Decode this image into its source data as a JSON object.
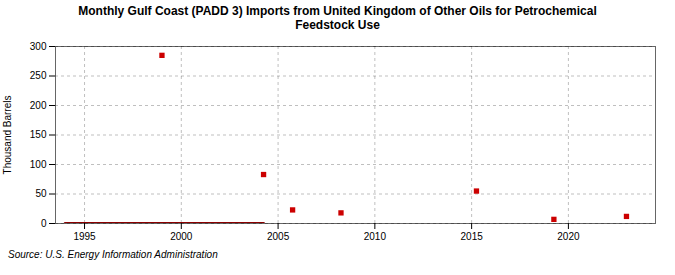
{
  "chart_data": {
    "type": "scatter",
    "title": "Monthly Gulf Coast (PADD 3) Imports from United Kingdom of Other Oils for Petrochemical\nFeedstock Use",
    "ylabel": "Thousand Barrels",
    "annotations": [
      "Source: U.S. Energy Information Administration"
    ],
    "series": [
      {
        "type": "line",
        "color": "#8b0000",
        "line_style": "solid",
        "x": [
          1994.0,
          2004.25
        ],
        "values": [
          0,
          0
        ]
      },
      {
        "type": "scatter",
        "color": "#cc0000",
        "marker": "square",
        "x": [
          1999.0,
          2004.25,
          2005.75,
          2008.25,
          2015.25,
          2019.25,
          2023.0
        ],
        "values": [
          285,
          83,
          23,
          18,
          55,
          7,
          12
        ]
      }
    ],
    "xlim": [
      1993.5,
      2024.5
    ],
    "xticks": [
      1995,
      2000,
      2005,
      2010,
      2015,
      2020
    ],
    "ylim": [
      0,
      300
    ],
    "yticks": [
      0,
      50,
      100,
      150,
      200,
      250,
      300
    ],
    "grid": true
  }
}
